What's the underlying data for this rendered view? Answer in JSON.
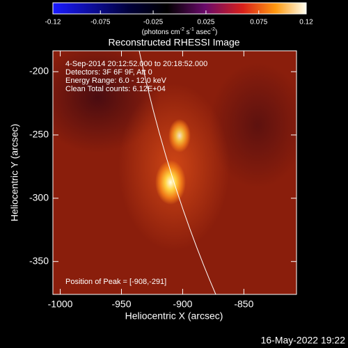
{
  "chart_data": {
    "type": "heatmap",
    "title": "Reconstructed RHESSI Image",
    "xlabel": "Heliocentric X (arcsec)",
    "ylabel": "Heliocentric Y (arcsec)",
    "xlim": [
      -1006,
      -807
    ],
    "ylim": [
      -376,
      -183.5
    ],
    "xticks": [
      -1000,
      -950,
      -900,
      -850
    ],
    "yticks": [
      -200,
      -250,
      -300,
      -350
    ],
    "colorbar": {
      "lim": [
        -0.12,
        0.12
      ],
      "ticks": [
        -0.12,
        -0.075,
        -0.025,
        0.025,
        0.075,
        0.12
      ],
      "label_parts": [
        "(photons cm",
        "-2",
        " s",
        "-1",
        " asec",
        "-2",
        ")"
      ]
    },
    "annotations": [
      "4-Sep-2014 20:12:52.000 to 20:18:52.000",
      "Detectors: 3F 6F 9F, Att 0",
      "Energy Range: 6.0 - 12.0 keV",
      "Clean    Total counts: 6.12E+04"
    ],
    "peak_label": "Position of Peak = [-908,-291]",
    "date_stamp": "16-May-2022 19:22"
  }
}
